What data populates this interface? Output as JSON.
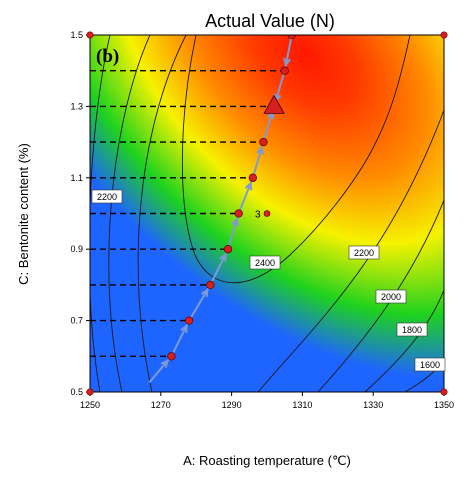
{
  "chart_data": {
    "type": "contour",
    "title": "Actual Value (N)",
    "panel_label": "(b)",
    "xlabel": "A: Roasting temperature (℃)",
    "ylabel": "C: Bentonite content (%)",
    "xlim": [
      1250,
      1350
    ],
    "ylim": [
      0.5,
      1.5
    ],
    "x_ticks": [
      "1250",
      "1270",
      "1290",
      "1310",
      "1330",
      "1350"
    ],
    "y_ticks": [
      "0.5",
      "0.7",
      "0.9",
      "1.1",
      "1.3",
      "1.5"
    ],
    "contour_labels": [
      "2200",
      "2400",
      "2200",
      "2000",
      "1800",
      "1600"
    ],
    "design_point_marker": "3",
    "design_points": [
      {
        "x": 1250,
        "y": 1.5
      },
      {
        "x": 1350,
        "y": 1.5
      },
      {
        "x": 1250,
        "y": 0.5
      },
      {
        "x": 1350,
        "y": 0.5
      }
    ],
    "center_point": {
      "x": 1300,
      "y": 1.0
    },
    "optimum": {
      "x": 1302,
      "y": 1.3
    },
    "path_points": [
      {
        "x": 1273,
        "y": 0.6
      },
      {
        "x": 1278,
        "y": 0.7
      },
      {
        "x": 1284,
        "y": 0.8
      },
      {
        "x": 1289,
        "y": 0.9
      },
      {
        "x": 1292,
        "y": 1.0
      },
      {
        "x": 1296,
        "y": 1.1
      },
      {
        "x": 1299,
        "y": 1.2
      },
      {
        "x": 1305,
        "y": 1.4
      },
      {
        "x": 1307,
        "y": 1.5
      }
    ],
    "guide_levels": [
      0.6,
      0.7,
      0.8,
      0.9,
      1.0,
      1.1,
      1.2,
      1.3,
      1.4
    ],
    "colors": {
      "peak": "#ff1800",
      "orange": "#ff8c00",
      "yellow": "#f6f200",
      "green": "#1ed21e",
      "blue": "#1e64ff",
      "path": "#7e9ad6",
      "point": "#d81f1f"
    }
  }
}
